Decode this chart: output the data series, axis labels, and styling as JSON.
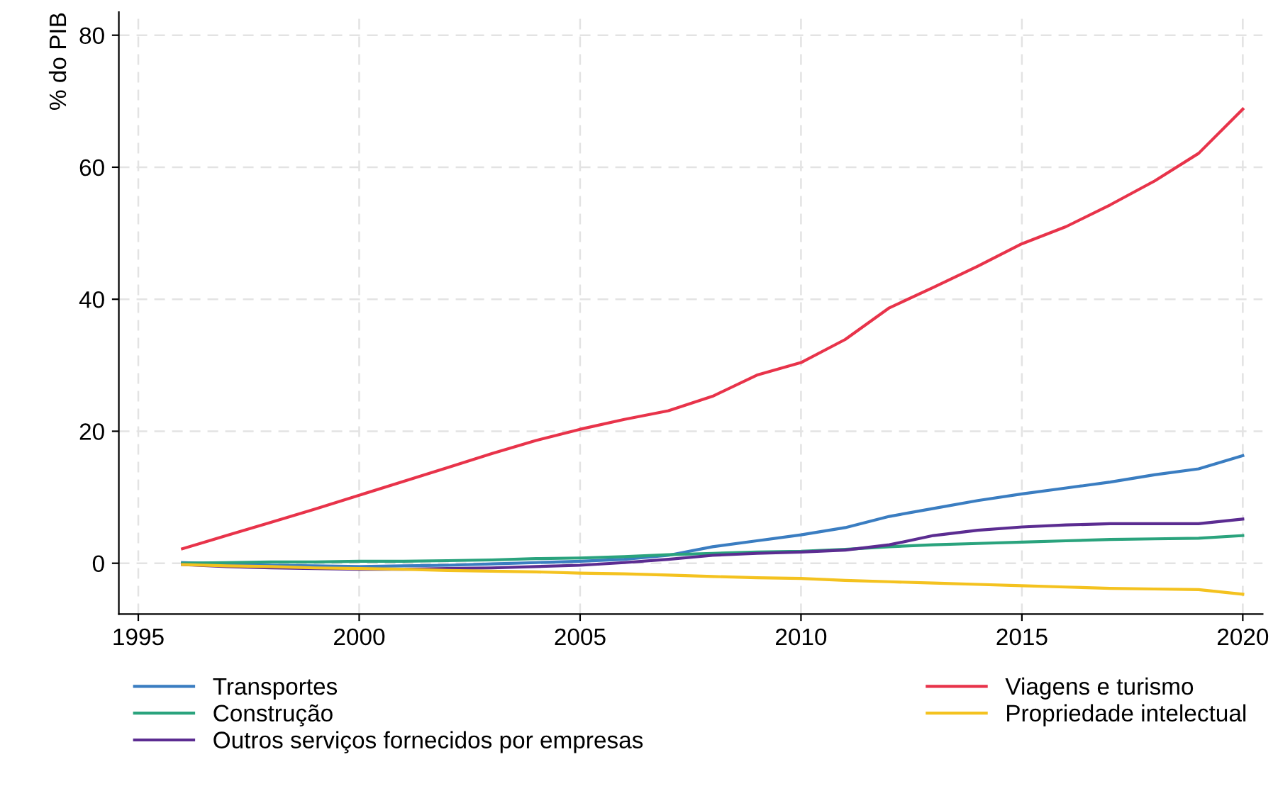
{
  "chart_data": {
    "type": "line",
    "ylabel": "% do PIB",
    "x": [
      1996,
      1997,
      1998,
      1999,
      2000,
      2001,
      2002,
      2003,
      2004,
      2005,
      2006,
      2007,
      2008,
      2009,
      2010,
      2011,
      2012,
      2013,
      2014,
      2015,
      2016,
      2017,
      2018,
      2019,
      2020
    ],
    "series": [
      {
        "name": "Transportes",
        "color": "#3a7dc1",
        "values": [
          0.1,
          -0.1,
          -0.3,
          -0.4,
          -0.5,
          -0.4,
          -0.3,
          -0.1,
          0.1,
          0.3,
          0.6,
          1.2,
          2.5,
          3.4,
          4.3,
          5.4,
          7.1,
          8.3,
          9.5,
          10.5,
          11.4,
          12.3,
          13.4,
          14.3,
          16.3
        ]
      },
      {
        "name": "Construção",
        "color": "#2aa37d",
        "values": [
          0.0,
          0.1,
          0.2,
          0.2,
          0.3,
          0.3,
          0.4,
          0.5,
          0.7,
          0.8,
          1.0,
          1.3,
          1.5,
          1.7,
          1.8,
          2.1,
          2.5,
          2.8,
          3.0,
          3.2,
          3.4,
          3.6,
          3.7,
          3.8,
          4.2
        ]
      },
      {
        "name": "Outros serviços fornecidos por empresas",
        "color": "#5b2c91",
        "values": [
          -0.2,
          -0.5,
          -0.7,
          -0.8,
          -0.9,
          -0.9,
          -0.8,
          -0.7,
          -0.5,
          -0.3,
          0.1,
          0.6,
          1.2,
          1.5,
          1.7,
          2.0,
          2.8,
          4.2,
          5.0,
          5.5,
          5.8,
          6.0,
          6.0,
          6.0,
          6.7
        ]
      },
      {
        "name": "Viagens e turismo",
        "color": "#e8334a",
        "values": [
          2.2,
          4.2,
          6.2,
          8.2,
          10.3,
          12.4,
          14.5,
          16.6,
          18.6,
          20.3,
          21.8,
          23.1,
          25.3,
          28.5,
          30.4,
          33.9,
          38.7,
          41.8,
          45.0,
          48.4,
          51.0,
          54.3,
          57.9,
          62.1,
          68.8
        ]
      },
      {
        "name": "Propriedade intelectual",
        "color": "#f4c21f",
        "values": [
          -0.2,
          -0.4,
          -0.5,
          -0.7,
          -0.8,
          -0.9,
          -1.1,
          -1.2,
          -1.3,
          -1.5,
          -1.6,
          -1.8,
          -2.0,
          -2.2,
          -2.3,
          -2.6,
          -2.8,
          -3.0,
          -3.2,
          -3.4,
          -3.6,
          -3.8,
          -3.9,
          -4.0,
          -4.7
        ]
      }
    ],
    "xlim": [
      1994.56,
      2020.45
    ],
    "ylim": [
      -7.7,
      83.5
    ],
    "xticks": [
      1995,
      2000,
      2005,
      2010,
      2015,
      2020
    ],
    "yticks": [
      0,
      20,
      40,
      60,
      80
    ],
    "grid": true,
    "legend": "bottom",
    "line_style": "solid",
    "marker": "none"
  }
}
